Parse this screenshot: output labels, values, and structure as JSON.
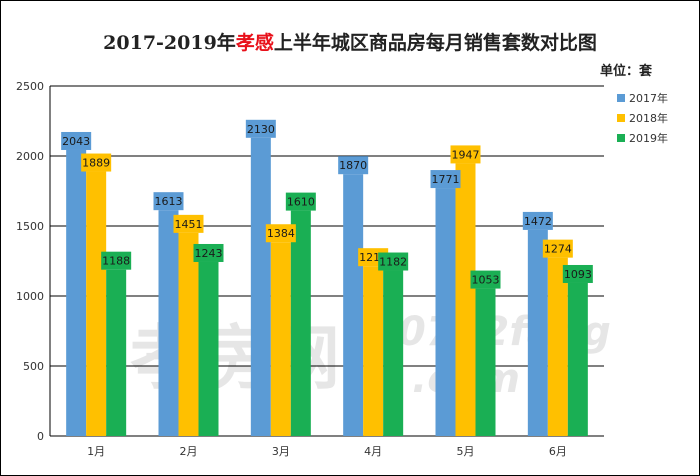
{
  "chart_data": {
    "type": "bar",
    "title_parts": [
      "2017-2019年",
      "孝感",
      "上半年城区商品房每月销售套数对比图"
    ],
    "unit_label": "单位：套",
    "categories": [
      "1月",
      "2月",
      "3月",
      "4月",
      "5月",
      "6月"
    ],
    "series": [
      {
        "name": "2017年",
        "color": "#5b9bd5",
        "label_bg": "#5b9bd5",
        "values": [
          2043,
          1613,
          2130,
          1870,
          1771,
          1472
        ]
      },
      {
        "name": "2018年",
        "color": "#ffc000",
        "label_bg": "#ffc000",
        "values": [
          1889,
          1451,
          1384,
          1213,
          1947,
          1274
        ]
      },
      {
        "name": "2019年",
        "color": "#1aaf54",
        "label_bg": "#1aaf54",
        "values": [
          1188,
          1243,
          1610,
          1182,
          1053,
          1093
        ]
      }
    ],
    "ylim": [
      0,
      2500
    ],
    "yticks": [
      0,
      500,
      1000,
      1500,
      2000,
      2500
    ],
    "grid": true,
    "legend_position": "right",
    "xlabel": "",
    "ylabel": ""
  },
  "watermark": {
    "text1": "孝房网",
    "text2": "0712fang",
    "text3": ".com"
  }
}
